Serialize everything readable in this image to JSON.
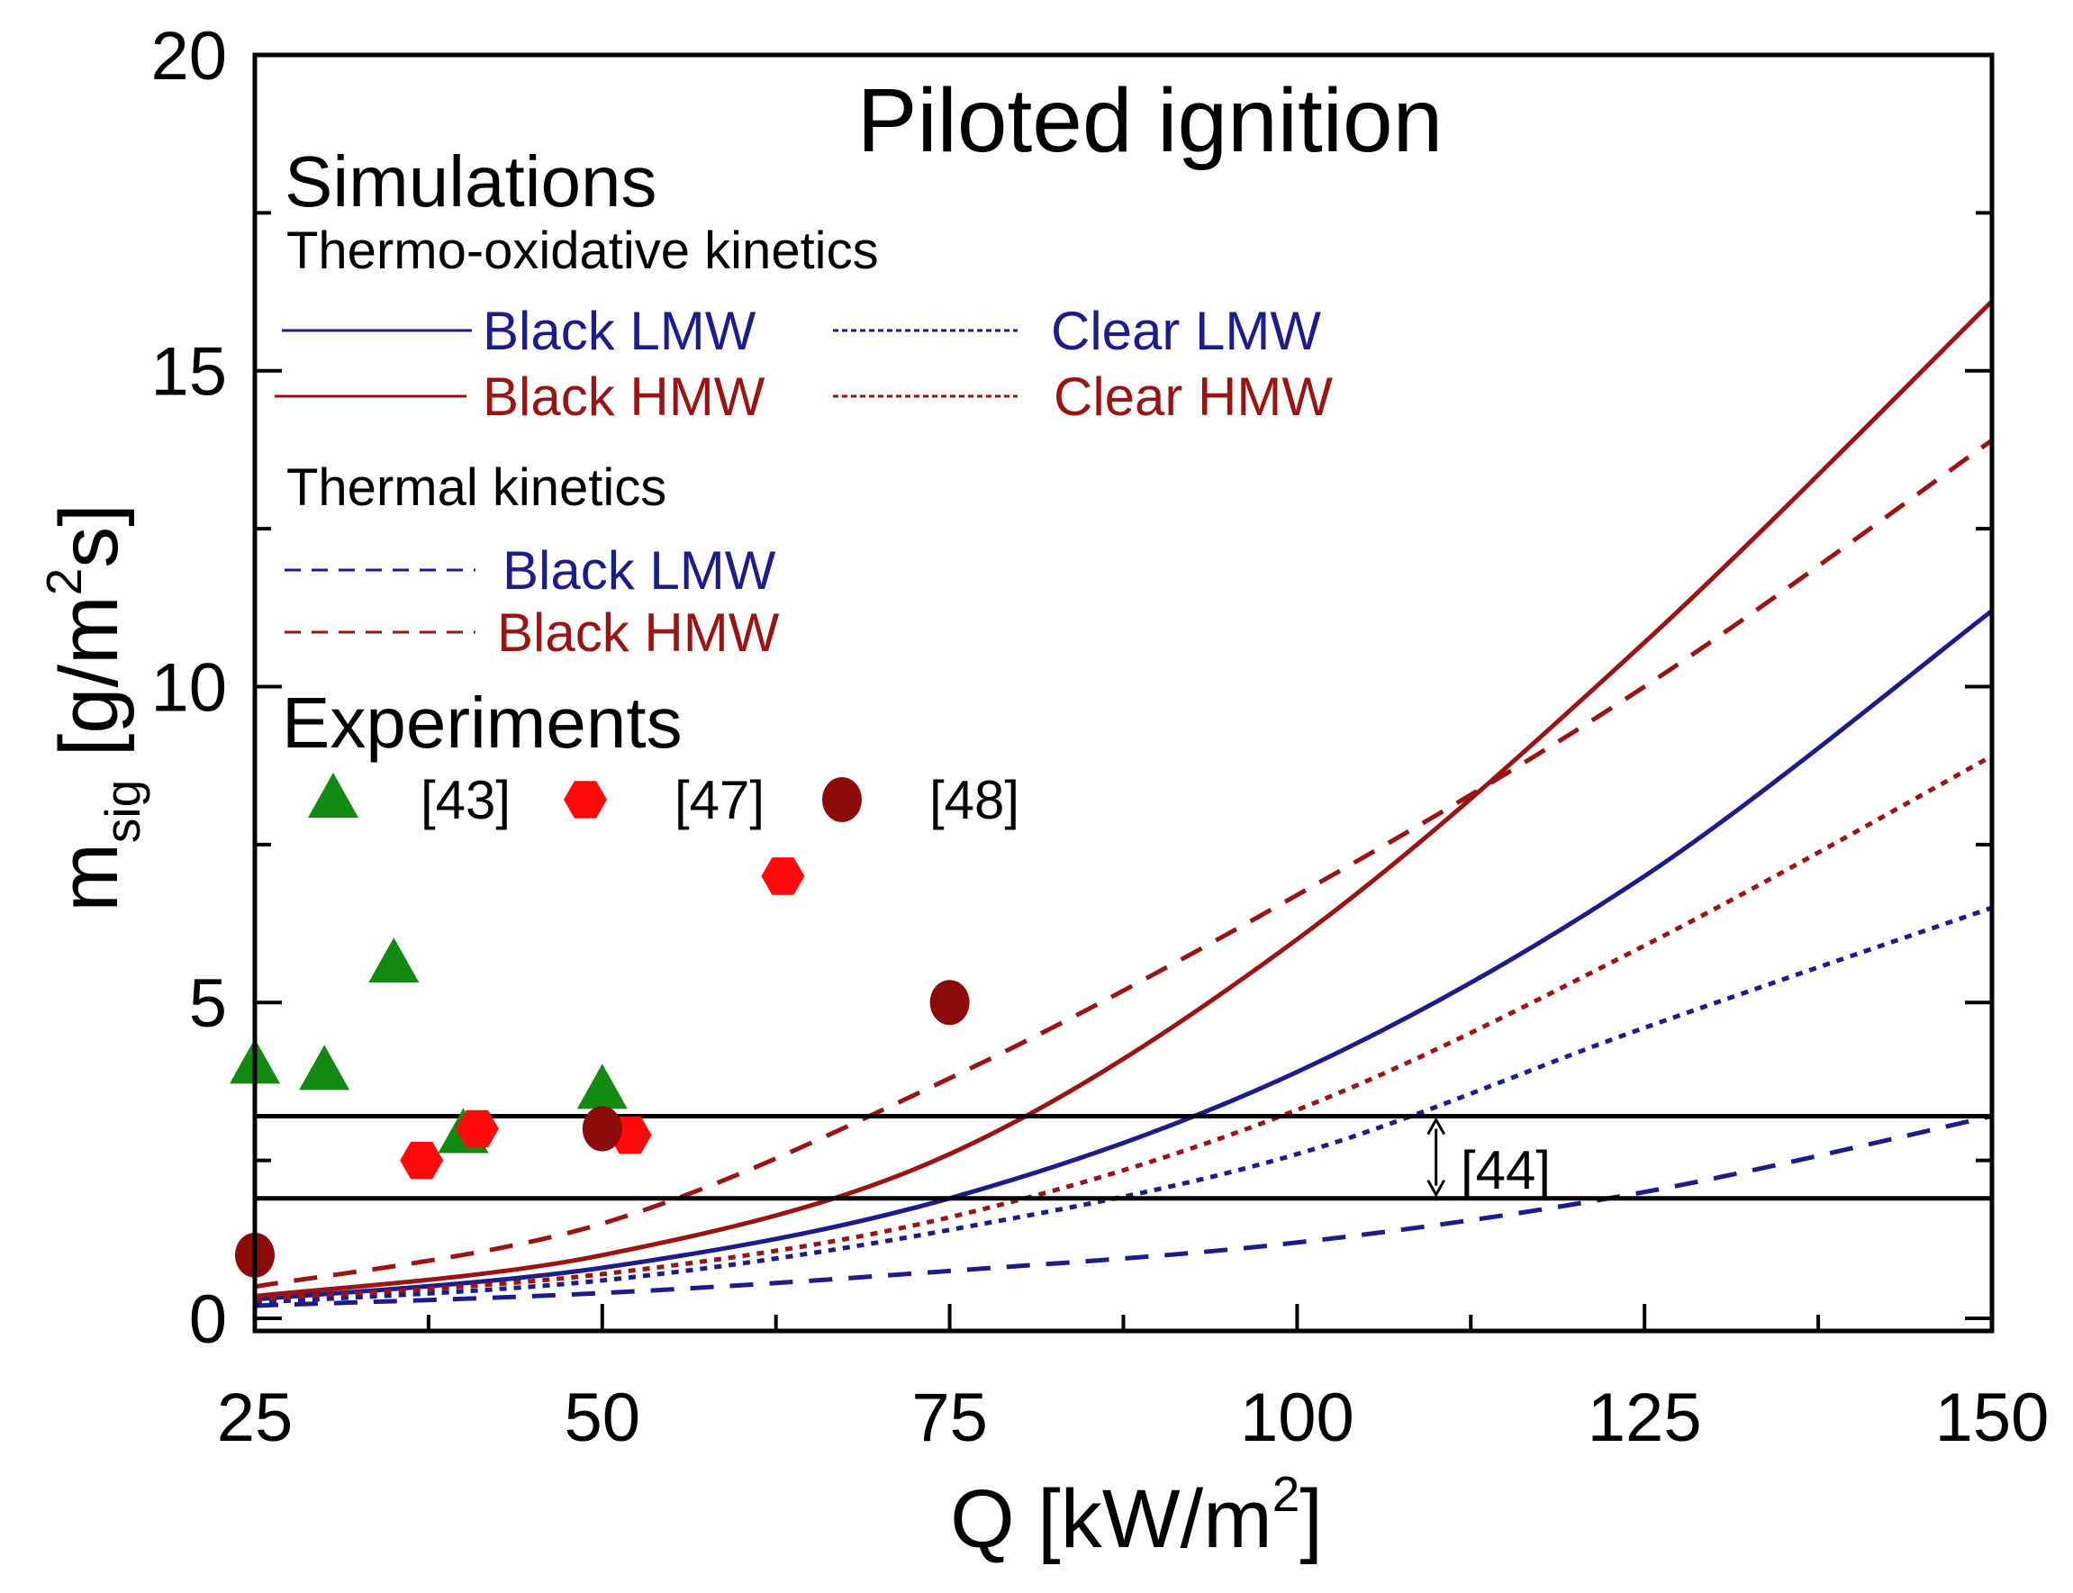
{
  "chart_data": {
    "type": "line",
    "title": "Piloted ignition",
    "xlabel": "Q [kW/m",
    "xlabel_sup": "2",
    "xlabel_end": "]",
    "ylabel_main": "m",
    "ylabel_sub": "sig",
    "ylabel_unit": "[g/m",
    "ylabel_sup": "2",
    "ylabel_end": "s]",
    "xlim": [
      25,
      150
    ],
    "ylim": [
      -0.2,
      20
    ],
    "x_ticks": [
      "25",
      "50",
      "75",
      "100",
      "125",
      "150"
    ],
    "y_ticks": [
      "0",
      "5",
      "10",
      "15",
      "20"
    ],
    "grid": false,
    "colors": {
      "blue": "#1c1c8a",
      "red": "#9a1414",
      "green": "#128a12",
      "hex": "#ff0a0a",
      "circle": "#8c0a0a"
    },
    "legend": {
      "simulations_heading": "Simulations",
      "thermo_heading": "Thermo-oxidative kinetics",
      "thermal_heading": "Thermal kinetics",
      "experiments_heading": "Experiments"
    },
    "series": [
      {
        "name": "Black LMW",
        "group": "Thermo-oxidative kinetics",
        "style": "solid",
        "color": "#1c1c8a",
        "x": [
          25,
          50,
          75,
          100,
          125,
          150
        ],
        "y": [
          0.3,
          0.8,
          1.9,
          3.9,
          7.0,
          11.2
        ]
      },
      {
        "name": "Black HMW",
        "group": "Thermo-oxidative kinetics",
        "style": "solid",
        "color": "#9a1414",
        "x": [
          25,
          50,
          75,
          100,
          125,
          150
        ],
        "y": [
          0.35,
          1.0,
          2.6,
          6.0,
          10.7,
          16.1
        ]
      },
      {
        "name": "Clear LMW",
        "group": "Thermo-oxidative kinetics",
        "style": "dotted",
        "color": "#1c1c8a",
        "x": [
          25,
          50,
          75,
          100,
          125,
          150
        ],
        "y": [
          0.25,
          0.6,
          1.4,
          2.6,
          4.6,
          6.5
        ]
      },
      {
        "name": "Clear HMW",
        "group": "Thermo-oxidative kinetics",
        "style": "dotted",
        "color": "#9a1414",
        "x": [
          25,
          50,
          75,
          100,
          125,
          150
        ],
        "y": [
          0.3,
          0.7,
          1.6,
          3.3,
          5.9,
          8.9
        ]
      },
      {
        "name": "Black LMW",
        "group": "Thermal kinetics",
        "style": "dashed",
        "color": "#1c1c8a",
        "x": [
          25,
          50,
          75,
          100,
          125,
          150
        ],
        "y": [
          0.2,
          0.4,
          0.75,
          1.2,
          2.0,
          3.2
        ]
      },
      {
        "name": "Black HMW",
        "group": "Thermal kinetics",
        "style": "dashed",
        "color": "#9a1414",
        "x": [
          25,
          50,
          75,
          100,
          125,
          150
        ],
        "y": [
          0.5,
          1.5,
          3.8,
          6.7,
          10.0,
          13.9
        ]
      }
    ],
    "experiments": [
      {
        "name": "[43]",
        "marker": "triangle",
        "color": "#128a12",
        "points": [
          [
            25,
            4.0
          ],
          [
            30,
            3.9
          ],
          [
            35,
            5.6
          ],
          [
            40,
            2.9
          ],
          [
            50,
            3.6
          ]
        ]
      },
      {
        "name": "[47]",
        "marker": "hexagon",
        "color": "#ff0a0a",
        "points": [
          [
            37,
            2.5
          ],
          [
            41,
            3.0
          ],
          [
            52,
            2.9
          ],
          [
            63,
            7.0
          ]
        ]
      },
      {
        "name": "[48]",
        "marker": "circle",
        "color": "#8c0a0a",
        "points": [
          [
            25,
            1.0
          ],
          [
            50,
            3.0
          ],
          [
            75,
            5.0
          ]
        ]
      }
    ],
    "reference_band": {
      "label": "[44]",
      "y_low": 1.9,
      "y_high": 3.2,
      "arrow_x": 110
    }
  }
}
